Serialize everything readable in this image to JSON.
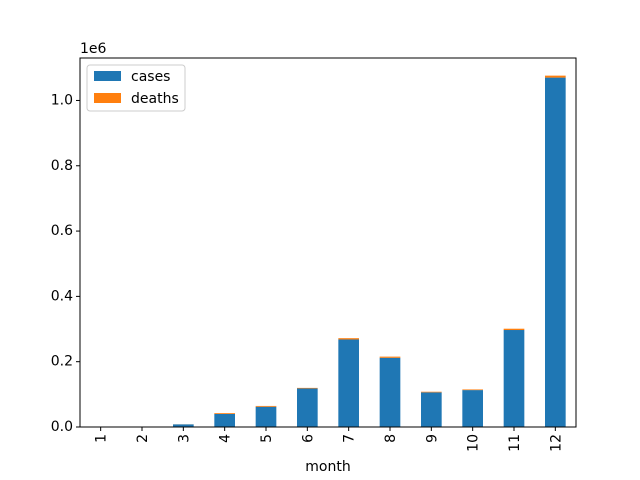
{
  "chart_data": {
    "type": "bar",
    "stacked": true,
    "xlabel": "month",
    "ylabel": "",
    "y_offset_label": "1e6",
    "categories": [
      "1",
      "2",
      "3",
      "4",
      "5",
      "6",
      "7",
      "8",
      "9",
      "10",
      "11",
      "12"
    ],
    "series": [
      {
        "name": "cases",
        "color": "#1f77b4",
        "values": [
          0,
          0,
          8000,
          40000,
          62000,
          118000,
          268000,
          212000,
          106000,
          113000,
          297000,
          1070000
        ]
      },
      {
        "name": "deaths",
        "color": "#ff7f0e",
        "values": [
          0,
          0,
          200,
          2500,
          2500,
          1800,
          4000,
          3500,
          2000,
          2000,
          4000,
          6000
        ]
      }
    ],
    "ylim": [
      0,
      1130000
    ],
    "yticks": [
      0,
      200000,
      400000,
      600000,
      800000,
      1000000
    ],
    "ytick_labels": [
      "0.0",
      "0.2",
      "0.4",
      "0.6",
      "0.8",
      "1.0"
    ],
    "legend_position": "top-left",
    "grid": false
  }
}
